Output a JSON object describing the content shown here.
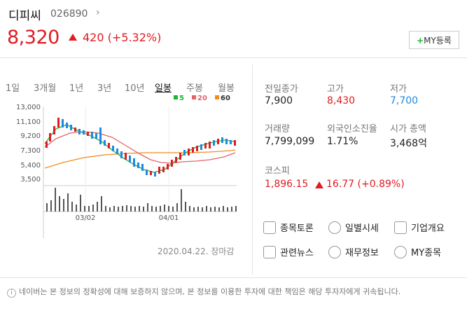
{
  "stock": {
    "name": "디피씨",
    "code": "026890",
    "price": "8,320",
    "change": "420 (+5.32%)",
    "my_button": "MY등록",
    "my_plus": "+"
  },
  "tabs": [
    "1일",
    "3개월",
    "1년",
    "3년",
    "10년",
    "일봉",
    "주봉",
    "월봉"
  ],
  "active_tab": "일봉",
  "legend": {
    "ma5": "5",
    "ma20": "20",
    "ma60": "60"
  },
  "colors": {
    "up": "#e01b22",
    "down": "#1e88e5",
    "ma5": "#19b82e",
    "ma20": "#e06666",
    "ma60": "#f08c1e"
  },
  "chart_data": {
    "type": "candlestick",
    "y_ticks": [
      "13,000",
      "11,100",
      "9,200",
      "7,300",
      "5,400",
      "3,500"
    ],
    "ylim": [
      3500,
      13000
    ],
    "x_ticks": [
      "03/02",
      "04/01"
    ]
  },
  "stats": {
    "prev_close_label": "전일종가",
    "prev_close": "7,900",
    "high_label": "고가",
    "high": "8,430",
    "low_label": "저가",
    "low": "7,700",
    "volume_label": "거래량",
    "volume": "7,799,099",
    "foreign_label": "외국인소진율",
    "foreign": "1.71%",
    "mcap_label": "시가 총액",
    "mcap": "3,468억"
  },
  "index": {
    "label": "코스피",
    "value": "1,896.15",
    "change": "16.77 (+0.89%)"
  },
  "menu": {
    "forum": "종목토론",
    "daily": "일별시세",
    "company": "기업개요",
    "news": "관련뉴스",
    "finance": "재무정보",
    "my": "MY종목"
  },
  "date": "2020.04.22. 장마감",
  "notice": "네이버는 본 정보의 정확성에 대해 보증하지 않으며, 본 정보를 이용한 투자에 대한 책임은 해당 투자자에게 귀속됩니다.",
  "notice_icon": "i"
}
